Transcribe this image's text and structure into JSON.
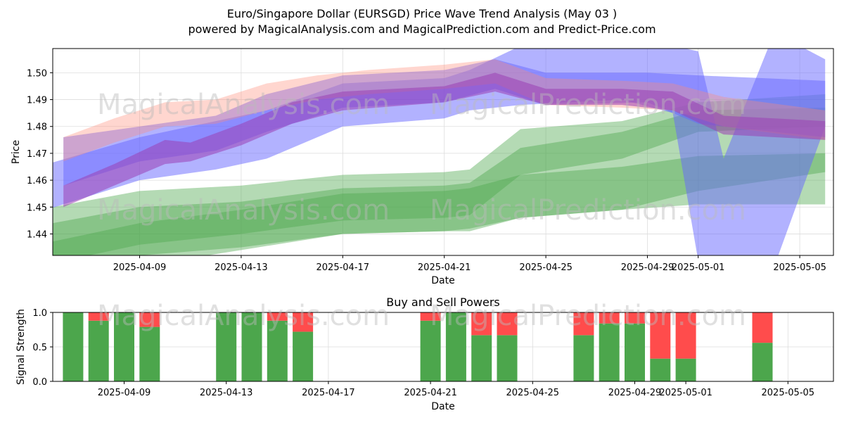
{
  "title_line1": "Euro/Singapore Dollar (EURSGD) Price Wave Trend Analysis (May 03 )",
  "title_line2": "powered by MagicalAnalysis.com and MagicalPrediction.com and Predict-Price.com",
  "watermarks": [
    "MagicalAnalysis.com",
    "MagicalPrediction.com"
  ],
  "colors": {
    "green": "#4ca64c",
    "red": "#ff4c4c",
    "blue": "#6666ff",
    "salmon": "#ff8a75",
    "purple": "#9b3fb5"
  },
  "chart_data": [
    {
      "type": "area",
      "title": "",
      "xlabel": "Date",
      "ylabel": "Price",
      "ylim": [
        1.432,
        1.509
      ],
      "grid": true,
      "xticks": [
        "2025-04-09",
        "2025-04-13",
        "2025-04-17",
        "2025-04-21",
        "2025-04-25",
        "2025-04-29",
        "2025-05-01",
        "2025-05-05"
      ],
      "yticks": [
        "1.44",
        "1.45",
        "1.46",
        "1.47",
        "1.48",
        "1.49",
        "1.50"
      ],
      "bands": [
        {
          "color": "green",
          "x": [
            "2025-04-05",
            "2025-04-09",
            "2025-04-13",
            "2025-04-17",
            "2025-04-21",
            "2025-04-22",
            "2025-04-24",
            "2025-04-28",
            "2025-05-01",
            "2025-05-06"
          ],
          "upper": [
            1.449,
            1.456,
            1.458,
            1.462,
            1.463,
            1.464,
            1.479,
            1.482,
            1.489,
            1.492
          ],
          "lower": [
            1.424,
            1.432,
            1.435,
            1.44,
            1.441,
            1.442,
            1.446,
            1.449,
            1.456,
            1.463
          ]
        },
        {
          "color": "green",
          "x": [
            "2025-04-05",
            "2025-04-09",
            "2025-04-13",
            "2025-04-17",
            "2025-04-21",
            "2025-04-22",
            "2025-04-24",
            "2025-04-28",
            "2025-05-01",
            "2025-05-06"
          ],
          "upper": [
            1.443,
            1.45,
            1.452,
            1.457,
            1.458,
            1.459,
            1.472,
            1.478,
            1.486,
            1.487
          ],
          "lower": [
            1.428,
            1.436,
            1.44,
            1.445,
            1.446,
            1.447,
            1.462,
            1.468,
            1.478,
            1.48
          ]
        },
        {
          "color": "green",
          "x": [
            "2025-04-05",
            "2025-04-09",
            "2025-04-13",
            "2025-04-17",
            "2025-04-21",
            "2025-04-22",
            "2025-04-24",
            "2025-04-28",
            "2025-05-01",
            "2025-05-06"
          ],
          "upper": [
            1.436,
            1.444,
            1.449,
            1.455,
            1.456,
            1.457,
            1.462,
            1.465,
            1.469,
            1.47
          ],
          "lower": [
            1.421,
            1.428,
            1.434,
            1.44,
            1.441,
            1.441,
            1.446,
            1.449,
            1.451,
            1.451
          ]
        },
        {
          "color": "blue",
          "x": [
            "2025-04-05",
            "2025-04-09",
            "2025-04-12",
            "2025-04-14",
            "2025-04-17",
            "2025-04-21",
            "2025-04-22",
            "2025-04-24",
            "2025-04-28",
            "2025-04-30",
            "2025-05-01",
            "2025-05-02",
            "2025-05-04",
            "2025-05-06"
          ],
          "upper": [
            1.465,
            1.476,
            1.482,
            1.486,
            1.496,
            1.498,
            1.501,
            1.51,
            1.51,
            1.51,
            1.508,
            1.468,
            1.515,
            1.505
          ],
          "lower": [
            1.448,
            1.46,
            1.464,
            1.468,
            1.48,
            1.483,
            1.486,
            1.488,
            1.49,
            1.485,
            1.43,
            1.425,
            1.428,
            1.48
          ]
        },
        {
          "color": "blue",
          "x": [
            "2025-04-06",
            "2025-04-09",
            "2025-04-12",
            "2025-04-14",
            "2025-04-17",
            "2025-04-21",
            "2025-04-23",
            "2025-04-25",
            "2025-04-29",
            "2025-05-01",
            "2025-05-06"
          ],
          "upper": [
            1.476,
            1.48,
            1.484,
            1.492,
            1.499,
            1.501,
            1.505,
            1.5,
            1.5,
            1.499,
            1.497
          ],
          "lower": [
            1.458,
            1.467,
            1.471,
            1.478,
            1.487,
            1.489,
            1.494,
            1.488,
            1.489,
            1.481,
            1.476
          ]
        },
        {
          "color": "salmon",
          "x": [
            "2025-04-06",
            "2025-04-08",
            "2025-04-10",
            "2025-04-12",
            "2025-04-14",
            "2025-04-16",
            "2025-04-18",
            "2025-04-21",
            "2025-04-23",
            "2025-04-25",
            "2025-04-28",
            "2025-04-30",
            "2025-05-02",
            "2025-05-06"
          ],
          "upper": [
            1.476,
            1.483,
            1.489,
            1.49,
            1.496,
            1.499,
            1.501,
            1.503,
            1.505,
            1.498,
            1.497,
            1.496,
            1.491,
            1.486
          ],
          "lower": [
            1.467,
            1.474,
            1.48,
            1.481,
            1.486,
            1.49,
            1.492,
            1.494,
            1.496,
            1.488,
            1.487,
            1.486,
            1.48,
            1.475
          ]
        },
        {
          "color": "purple",
          "x": [
            "2025-04-06",
            "2025-04-08",
            "2025-04-10",
            "2025-04-11",
            "2025-04-13",
            "2025-04-15",
            "2025-04-17",
            "2025-04-21",
            "2025-04-23",
            "2025-04-25",
            "2025-04-28",
            "2025-04-30",
            "2025-05-02",
            "2025-05-06"
          ],
          "upper": [
            1.458,
            1.466,
            1.475,
            1.474,
            1.481,
            1.489,
            1.493,
            1.495,
            1.5,
            1.494,
            1.494,
            1.493,
            1.484,
            1.482
          ],
          "lower": [
            1.45,
            1.458,
            1.466,
            1.467,
            1.473,
            1.481,
            1.486,
            1.489,
            1.493,
            1.488,
            1.488,
            1.486,
            1.477,
            1.475
          ]
        }
      ]
    },
    {
      "type": "bar",
      "title": "Buy and Sell Powers",
      "xlabel": "Date",
      "ylabel": "Signal Strength",
      "ylim": [
        0,
        1
      ],
      "grid": true,
      "xticks": [
        "2025-04-09",
        "2025-04-13",
        "2025-04-17",
        "2025-04-21",
        "2025-04-25",
        "2025-04-29",
        "2025-05-01",
        "2025-05-05"
      ],
      "yticks": [
        "0.0",
        "0.5",
        "1.0"
      ],
      "categories": [
        "2025-04-07",
        "2025-04-08",
        "2025-04-09",
        "2025-04-10",
        "2025-04-13",
        "2025-04-14",
        "2025-04-15",
        "2025-04-16",
        "2025-04-21",
        "2025-04-22",
        "2025-04-23",
        "2025-04-24",
        "2025-04-27",
        "2025-04-28",
        "2025-04-29",
        "2025-04-30",
        "2025-05-01",
        "2025-05-04"
      ],
      "series": [
        {
          "name": "buy",
          "color": "green",
          "values": [
            1.0,
            0.88,
            1.0,
            0.79,
            1.0,
            1.0,
            0.88,
            0.72,
            0.88,
            1.0,
            0.67,
            0.67,
            0.67,
            0.84,
            0.84,
            0.33,
            0.33,
            0.56
          ]
        },
        {
          "name": "sell",
          "color": "red",
          "values": [
            0.0,
            0.12,
            0.0,
            0.21,
            0.0,
            0.0,
            0.12,
            0.28,
            0.12,
            0.0,
            0.33,
            0.33,
            0.33,
            0.16,
            0.16,
            0.67,
            0.67,
            0.44
          ]
        }
      ]
    }
  ]
}
